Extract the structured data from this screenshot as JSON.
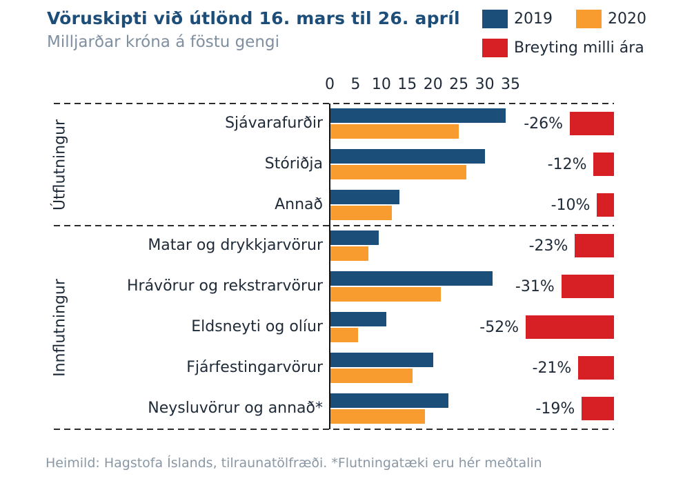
{
  "header": {
    "title": "Vöruskipti við útlönd 16. mars til 26. apríl",
    "subtitle": "Milljarðar króna á föstu gengi"
  },
  "legend": {
    "items": [
      {
        "label": "2019",
        "color": "#1C4E7A"
      },
      {
        "label": "2020",
        "color": "#F89C30"
      },
      {
        "label": "Breyting milli ára",
        "color": "#D71F26"
      }
    ]
  },
  "chart_data": {
    "type": "bar",
    "orientation": "horizontal",
    "title": "Vöruskipti við útlönd 16. mars til 26. apríl",
    "subtitle": "Milljarðar króna á föstu gengi",
    "unit": "Milljarðar króna á föstu gengi",
    "series_names": [
      "2019",
      "2020",
      "Breyting milli ára"
    ],
    "xlim": [
      0,
      35
    ],
    "x_ticks": [
      0,
      5,
      10,
      15,
      20,
      25,
      30,
      35
    ],
    "grid": false,
    "legend_position": "top-right",
    "groups": [
      {
        "label": "Útflutningur",
        "rows": [
          {
            "category": "Sjávarafurðir",
            "v2019": 34,
            "v2020": 25,
            "change_pct": -26,
            "change_label": "-26%"
          },
          {
            "category": "Stóriðja",
            "v2019": 30,
            "v2020": 26.5,
            "change_pct": -12,
            "change_label": "-12%"
          },
          {
            "category": "Annað",
            "v2019": 13.5,
            "v2020": 12,
            "change_pct": -10,
            "change_label": "-10%"
          }
        ]
      },
      {
        "label": "Innflutningur",
        "rows": [
          {
            "category": "Matar og drykkjarvörur",
            "v2019": 9.5,
            "v2020": 7.5,
            "change_pct": -23,
            "change_label": "-23%"
          },
          {
            "category": "Hrávörur og rekstrarvörur",
            "v2019": 31.5,
            "v2020": 21.5,
            "change_pct": -31,
            "change_label": "-31%"
          },
          {
            "category": "Eldsneyti og olíur",
            "v2019": 11,
            "v2020": 5.5,
            "change_pct": -52,
            "change_label": "-52%"
          },
          {
            "category": "Fjárfestingarvörur",
            "v2019": 20,
            "v2020": 16,
            "change_pct": -21,
            "change_label": "-21%"
          },
          {
            "category": "Neysluvörur og annað*",
            "v2019": 23,
            "v2020": 18.5,
            "change_pct": -19,
            "change_label": "-19%"
          }
        ]
      }
    ]
  },
  "colors": {
    "blue_2019": "#1C4E7A",
    "orange_2020": "#F89C30",
    "red_change": "#D71F26",
    "title_blue": "#1D4E79",
    "subtitle_gray": "#7E8FA0",
    "text_dark": "#1E2A38"
  },
  "footer": {
    "source": "Heimild: Hagstofa Íslands, tilraunatölfræði. *Flutningatæki eru hér meðtalin"
  }
}
